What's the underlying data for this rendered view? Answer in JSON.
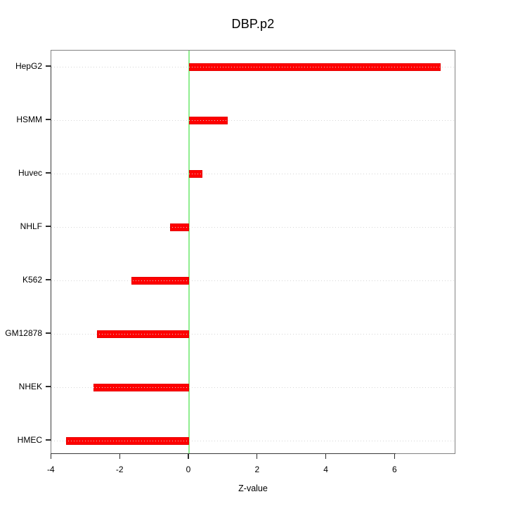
{
  "title": "DBP.p2",
  "xlabel": "Z-value",
  "colors": {
    "bar": "#fe0000",
    "bar_border": "#e60000",
    "zero_line": "#90ee90",
    "grid_dots": "#d6d6d6",
    "box_border": "#828282",
    "axis": "#2e2e2e",
    "text": "#000000",
    "background": "#ffffff"
  },
  "chart_data": {
    "type": "bar",
    "orientation": "horizontal",
    "title": "DBP.p2",
    "xlabel": "Z-value",
    "ylabel": "",
    "categories": [
      "HepG2",
      "HSMM",
      "Huvec",
      "NHLF",
      "K562",
      "GM12878",
      "NHEK",
      "HMEC"
    ],
    "values": [
      7.32,
      1.12,
      0.39,
      -0.55,
      -1.68,
      -2.68,
      -2.78,
      -3.58
    ],
    "x_ticks": [
      -4,
      -2,
      0,
      2,
      4,
      6
    ],
    "xlim": [
      -4.01,
      7.77
    ],
    "zero_reference_line": 0,
    "grid": "dotted horizontal line at each category, drawn over bars",
    "legend": "none",
    "bar_color": "#fe0000",
    "zero_line_color": "#90ee90"
  }
}
